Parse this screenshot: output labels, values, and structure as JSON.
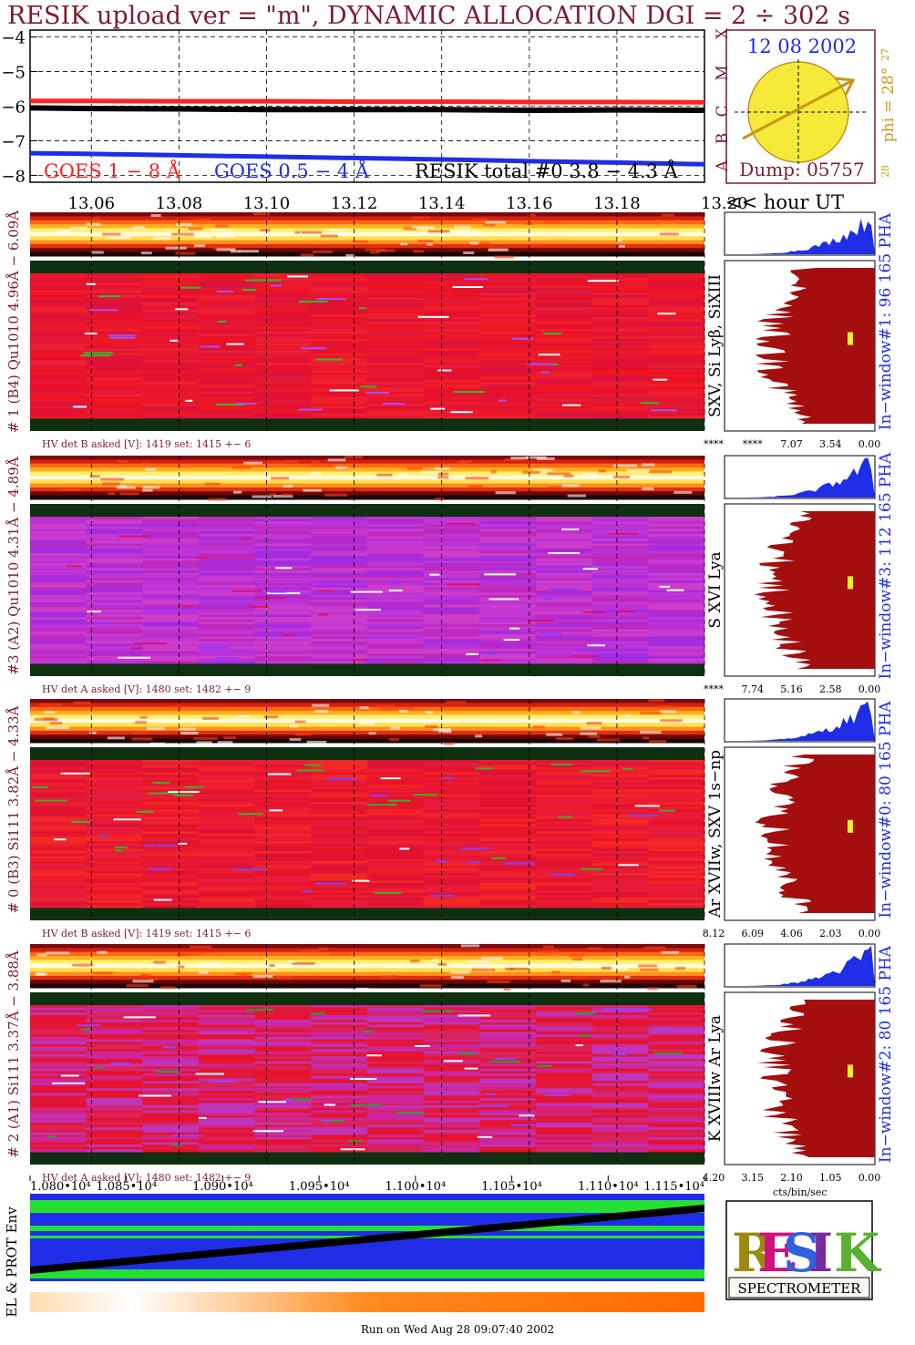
{
  "header": {
    "title": "RESIK upload ver = \"m\", DYNAMIC ALLOCATION  DGI =   2 ÷ 302 s"
  },
  "goes": {
    "y_ticks": [
      "−4",
      "−5",
      "−6",
      "−7",
      "−8"
    ],
    "y_values": [
      -4,
      -5,
      -6,
      -7,
      -8
    ],
    "legend": [
      "GOES 1 − 8 Å",
      "GOES 0.5 − 4 Å",
      "RESIK total #0  3.8 − 4.3 Å"
    ],
    "colors": [
      "#ff2020",
      "#1f2ee6",
      "#000000"
    ]
  },
  "time_axis": {
    "ticks": [
      "13.06",
      "13.08",
      "13.10",
      "13.12",
      "13.14",
      "13.16",
      "13.18",
      "13.20"
    ],
    "label": "<< hour UT"
  },
  "sun_box": {
    "date": "12 08 2002",
    "letters": [
      "X",
      "M",
      "C",
      "B",
      "A"
    ],
    "phi": "phi = 28°",
    "phi_top": "27",
    "phi_bottom": "28",
    "dump": "Dump: 05757"
  },
  "detectors": [
    {
      "label": "# 1 (B4) Qu1010 4.96Å − 6.09Å",
      "line": "SXV, Si Lyβ, SiXIII",
      "window": "In−window#1:   96 165  PHA",
      "hv": "HV det B asked [V]:  1419 set:  1415  +−     6",
      "scale": [
        "****",
        "****",
        "7.07",
        "3.54",
        "0.00"
      ]
    },
    {
      "label": "#3 (A2) Qu1010  4.31Å − 4.89Å",
      "line": "S XVI Lya",
      "window": "In−window#3:  112 165  PHA",
      "hv": "HV det A asked [V]:  1480 set:  1482  +−     9",
      "scale": [
        "****",
        "7.74",
        "5.16",
        "2.58",
        "0.00"
      ]
    },
    {
      "label": "# 0 (B3) Si111  3.82Å − 4.33Å",
      "line": "Ar XVIIw,  SXV 1s−np",
      "window": "In−window#0:   80 165  PHA",
      "hv": "HV det B asked [V]:  1419 set:  1415  +−     6",
      "scale": [
        "8.12",
        "6.09",
        "4.06",
        "2.03",
        "0.00"
      ]
    },
    {
      "label": "# 2 (A1) Si111  3.37Å − 3.88Å",
      "line": "K XVIIIw  Ar Lya",
      "window": "In−window#2:   80 165  PHA",
      "hv": "HV det A asked [V]:  1480 set:  1482  +−     9",
      "scale": [
        "4.20",
        "3.15",
        "2.10",
        "1.05",
        "0.00"
      ]
    }
  ],
  "bottom_axis": {
    "ticks": [
      "1.080•10⁴",
      "1.085•10⁴",
      "1.090•10⁴",
      "1.095•10⁴",
      "1.100•10⁴",
      "1.105•10⁴",
      "1.110•10⁴",
      "1.115•10⁴"
    ],
    "units": "cts/bin/sec"
  },
  "env_label": "EL & PROT Env",
  "logo": {
    "text": "SPECTROMETER",
    "letters": "RESIK"
  },
  "footer": "Run on Wed Aug 28 09:07:40 2002",
  "chart_data": [
    {
      "type": "line",
      "title": "RESIK upload ver = \"m\", DYNAMIC ALLOCATION  DGI =   2 ÷ 302 s",
      "xlabel": "<< hour UT",
      "ylabel": "",
      "x": [
        13.046,
        13.06,
        13.08,
        13.1,
        13.12,
        13.14,
        13.16,
        13.18,
        13.2
      ],
      "xlim": [
        13.046,
        13.2
      ],
      "ylim": [
        -8.2,
        -3.8
      ],
      "series": [
        {
          "name": "GOES 1 − 8 Å",
          "values": [
            -5.85,
            -5.85,
            -5.86,
            -5.86,
            -5.87,
            -5.87,
            -5.88,
            -5.88,
            -5.89
          ]
        },
        {
          "name": "GOES 0.5 − 4 Å",
          "values": [
            -7.36,
            -7.38,
            -7.42,
            -7.46,
            -7.5,
            -7.54,
            -7.59,
            -7.63,
            -7.68
          ]
        },
        {
          "name": "RESIK total #0  3.8 − 4.3 Å",
          "values": [
            -6.05,
            -6.07,
            -6.08,
            -6.1,
            -6.1,
            -6.1,
            -6.12,
            -6.11,
            -6.12
          ]
        }
      ]
    },
    {
      "type": "heatmap",
      "title": "# 1 (B4) Qu1010 4.96Å − 6.09Å"
    },
    {
      "type": "heatmap",
      "title": "#3 (A2) Qu1010  4.31Å − 4.89Å"
    },
    {
      "type": "heatmap",
      "title": "# 0 (B3) Si111  3.82Å − 4.33Å"
    },
    {
      "type": "heatmap",
      "title": "# 2 (A1) Si111  3.37Å − 3.88Å"
    }
  ]
}
